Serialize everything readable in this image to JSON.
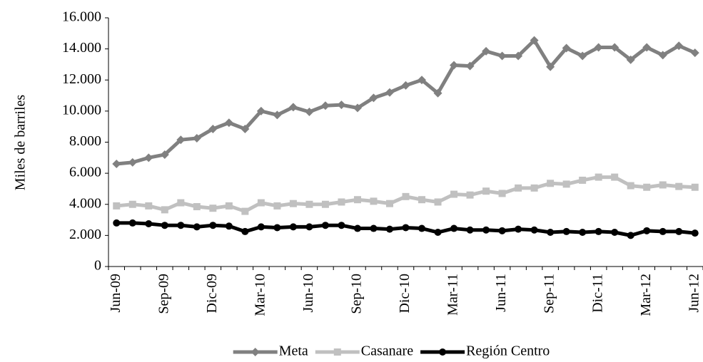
{
  "chart_data": {
    "type": "line",
    "y_label": "Miles de barriles",
    "categories": [
      "Jun-09",
      null,
      null,
      "Sep-09",
      null,
      null,
      "Dic-09",
      null,
      null,
      "Mar-10",
      null,
      null,
      "Jun-10",
      null,
      null,
      "Sep-10",
      null,
      null,
      "Dic-10",
      null,
      null,
      "Mar-11",
      null,
      null,
      "Jun-11",
      null,
      null,
      "Sep-11",
      null,
      null,
      "Dic-11",
      null,
      null,
      "Mar-12",
      null,
      null,
      "Jun-12"
    ],
    "series": [
      {
        "name": "Meta",
        "color": "#808080",
        "marker": "diamond",
        "values": [
          6600,
          6700,
          7000,
          7200,
          8150,
          8250,
          8850,
          9250,
          8850,
          10000,
          9750,
          10250,
          9950,
          10350,
          10400,
          10200,
          10850,
          11200,
          11650,
          12000,
          11150,
          12950,
          12900,
          13850,
          13550,
          13550,
          14550,
          12850,
          14050,
          13550,
          14100,
          14100,
          13300,
          14100,
          13600,
          14200,
          13750
        ]
      },
      {
        "name": "Casanare",
        "color": "#c0c0c0",
        "marker": "square",
        "values": [
          3900,
          4000,
          3900,
          3650,
          4100,
          3850,
          3750,
          3900,
          3550,
          4100,
          3900,
          4050,
          4000,
          4000,
          4150,
          4300,
          4200,
          4050,
          4500,
          4300,
          4150,
          4650,
          4600,
          4850,
          4700,
          5050,
          5050,
          5350,
          5300,
          5550,
          5750,
          5750,
          5200,
          5100,
          5250,
          5150,
          5100
        ]
      },
      {
        "name": "Región Centro",
        "color": "#000000",
        "marker": "circle",
        "values": [
          2800,
          2800,
          2750,
          2650,
          2650,
          2550,
          2650,
          2600,
          2250,
          2550,
          2500,
          2550,
          2550,
          2650,
          2650,
          2450,
          2450,
          2400,
          2500,
          2450,
          2200,
          2450,
          2350,
          2350,
          2300,
          2400,
          2350,
          2200,
          2250,
          2200,
          2250,
          2200,
          2000,
          2300,
          2250,
          2250,
          2150
        ]
      }
    ],
    "ylim": [
      0,
      16000
    ],
    "yticks": [
      0,
      {
        "value": 2000,
        "label": "2.000"
      },
      {
        "value": 4000,
        "label": "4.000"
      },
      {
        "value": 6000,
        "label": "6.000"
      },
      {
        "value": 8000,
        "label": "8.000"
      },
      {
        "value": 10000,
        "label": "10.000"
      },
      {
        "value": 12000,
        "label": "12.000"
      },
      {
        "value": 14000,
        "label": "14.000"
      },
      {
        "value": 16000,
        "label": "16.000"
      }
    ],
    "legend": "bottom"
  }
}
